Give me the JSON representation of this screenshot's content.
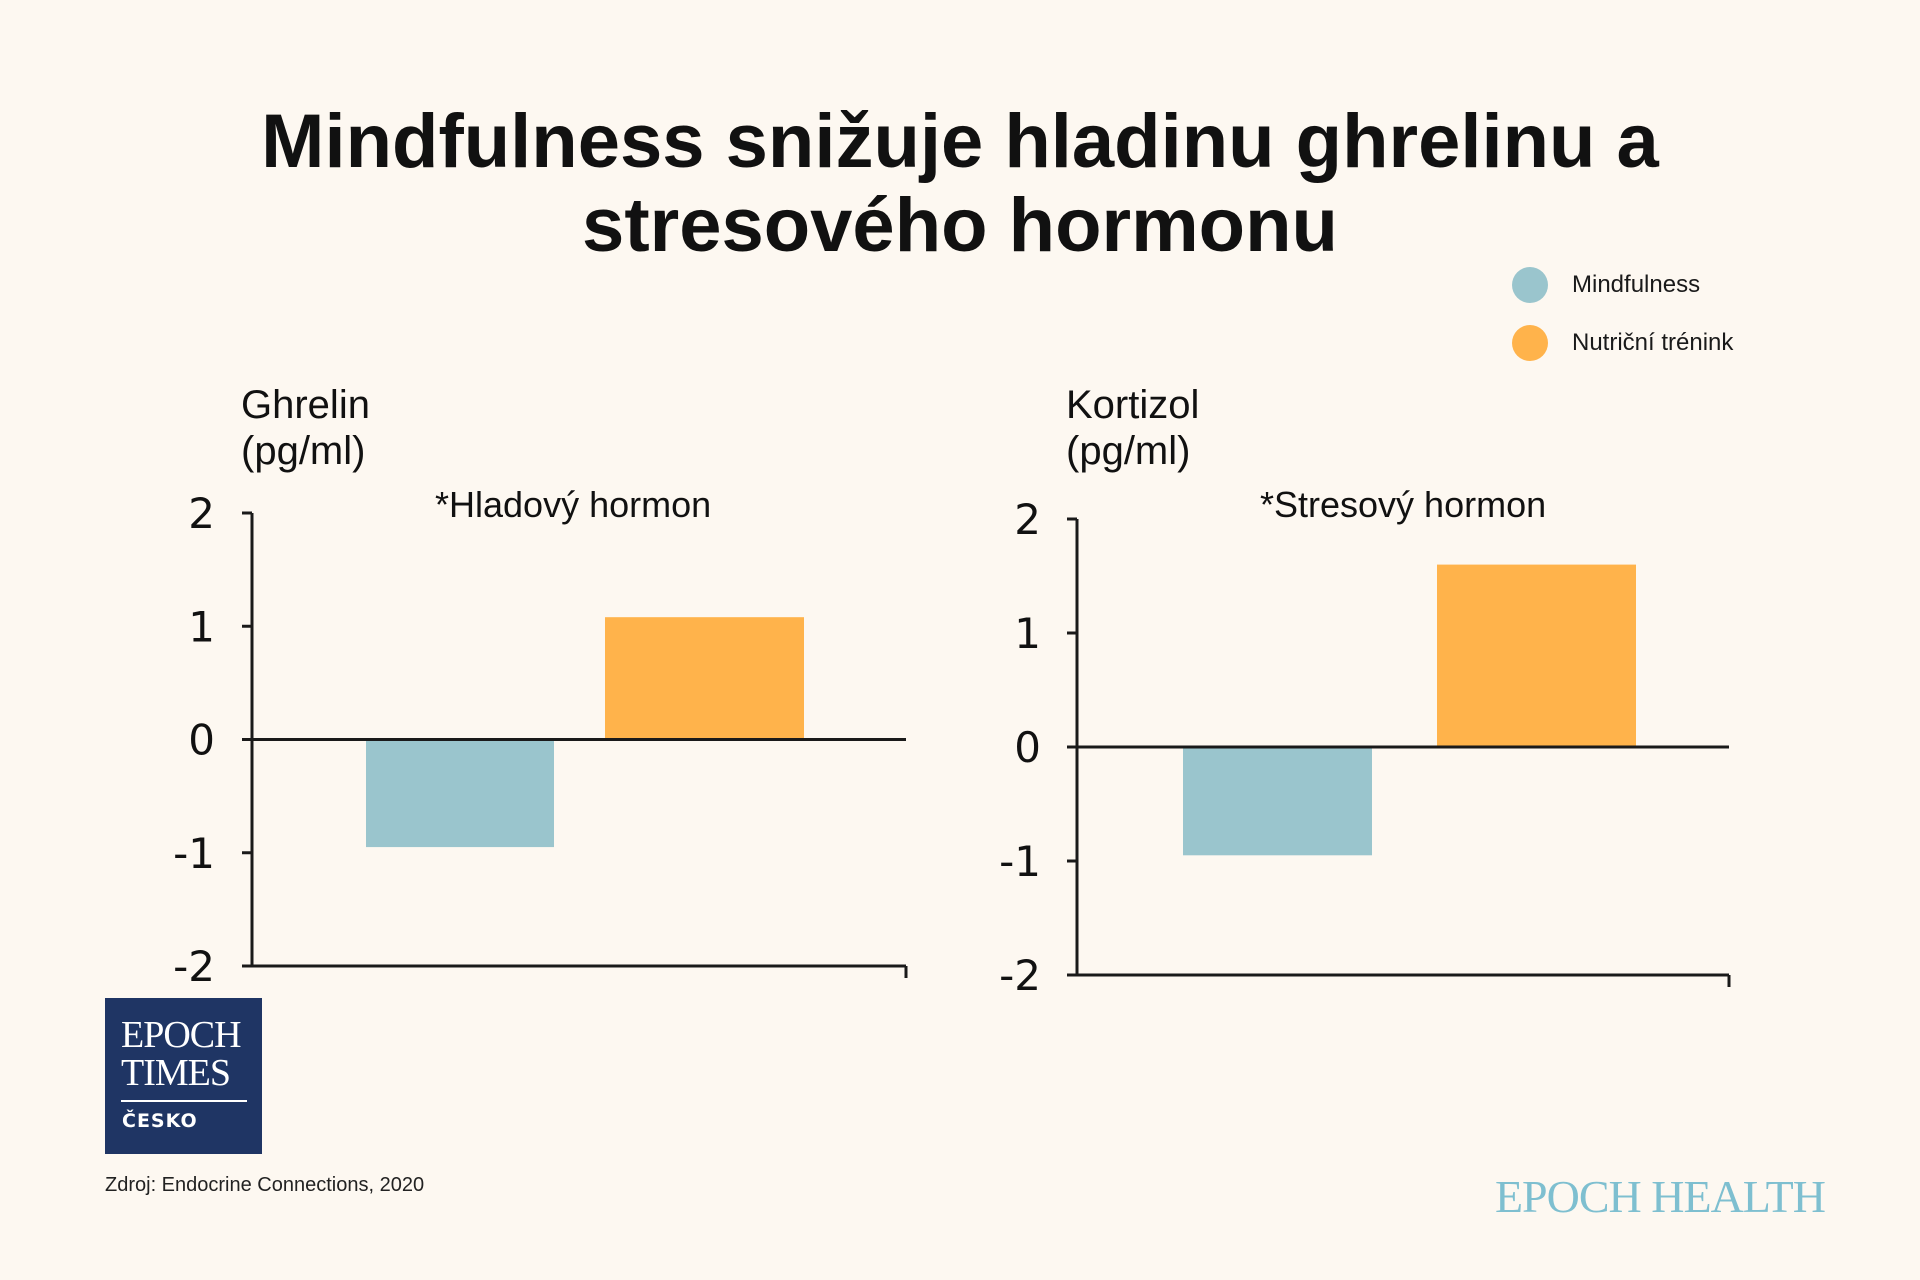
{
  "title_line1": "Mindfulness snižuje hladinu ghrelinu a",
  "title_line2": "stresového hormonu",
  "legend": [
    {
      "label": "Mindfulness",
      "color": "#9ac5cd"
    },
    {
      "label": "Nutriční trénink",
      "color": "#ffb34b"
    }
  ],
  "chart_data": [
    {
      "type": "bar",
      "ylabel_line1": "Ghrelin",
      "ylabel_line2": "(pg/ml)",
      "annotation": "*Hladový hormon",
      "ylim": [
        -2,
        2
      ],
      "yticks": [
        2,
        1,
        0,
        -1,
        -2
      ],
      "series": [
        {
          "name": "Mindfulness",
          "value": -0.95,
          "color": "#9ac5cd"
        },
        {
          "name": "Nutriční trénink",
          "value": 1.08,
          "color": "#ffb34b"
        }
      ]
    },
    {
      "type": "bar",
      "ylabel_line1": "Kortizol",
      "ylabel_line2": "(pg/ml)",
      "annotation": "*Stresový hormon",
      "ylim": [
        -2,
        2
      ],
      "yticks": [
        2,
        1,
        0,
        -1,
        -2
      ],
      "series": [
        {
          "name": "Mindfulness",
          "value": -0.95,
          "color": "#9ac5cd"
        },
        {
          "name": "Nutriční trénink",
          "value": 1.6,
          "color": "#ffb34b"
        }
      ]
    }
  ],
  "logo": {
    "line1": "EPOCH",
    "line2": "TIMES",
    "sub": "ČESKO"
  },
  "source": "Zdroj: Endocrine Connections, 2020",
  "brand": "EPOCH HEALTH"
}
